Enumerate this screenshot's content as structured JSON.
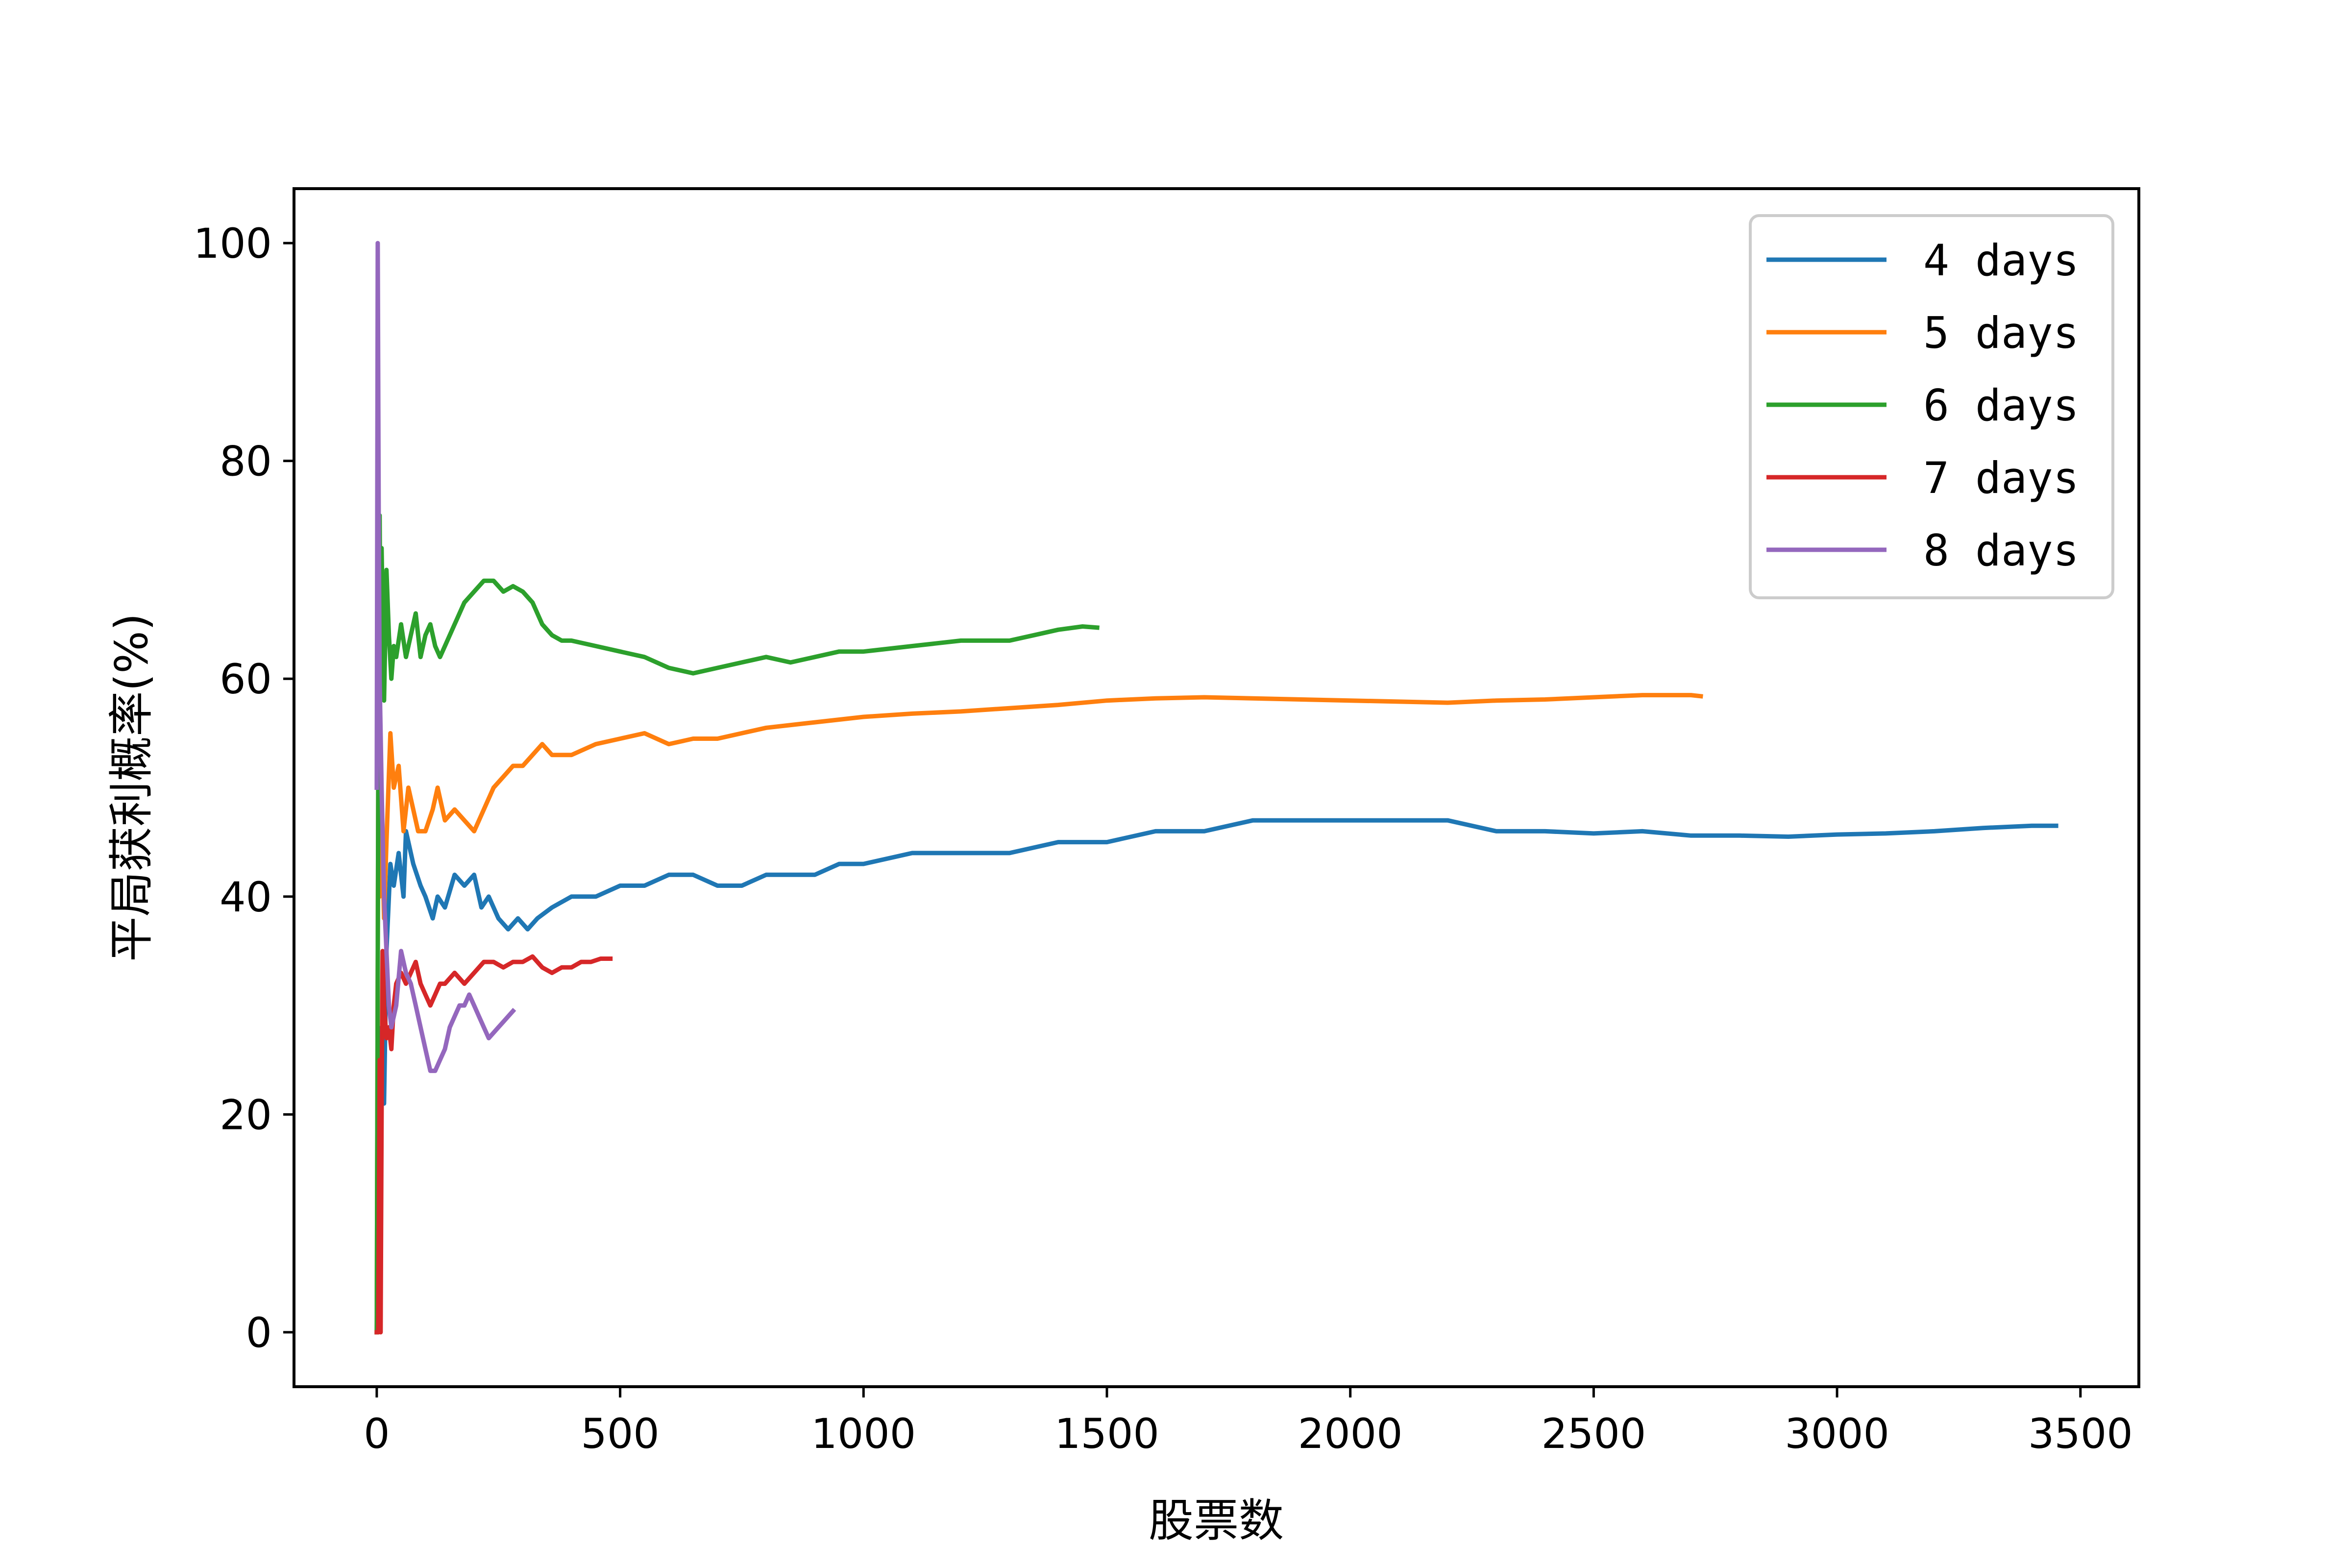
{
  "chart_data": {
    "type": "line",
    "title": "",
    "xlabel": "股票数",
    "ylabel": "平局获利概率(%)",
    "xlim": [
      -170,
      3620
    ],
    "ylim": [
      -5,
      105
    ],
    "xticks": [
      0,
      500,
      1000,
      1500,
      2000,
      2500,
      3000,
      3500
    ],
    "yticks": [
      0,
      20,
      40,
      60,
      80,
      100
    ],
    "xtick_labels": [
      "0",
      "500",
      "1000",
      "1500",
      "2000",
      "2500",
      "3000",
      "3500"
    ],
    "ytick_labels": [
      "0",
      "20",
      "40",
      "60",
      "80",
      "100"
    ],
    "grid": false,
    "legend_position": "top-right",
    "series": [
      {
        "name": "4 days",
        "color": "#1f77b4",
        "points": [
          [
            0,
            0
          ],
          [
            3,
            25
          ],
          [
            6,
            17
          ],
          [
            10,
            28
          ],
          [
            15,
            21
          ],
          [
            20,
            35
          ],
          [
            28,
            43
          ],
          [
            35,
            41
          ],
          [
            45,
            44
          ],
          [
            55,
            40
          ],
          [
            60,
            46
          ],
          [
            75,
            43
          ],
          [
            90,
            41
          ],
          [
            100,
            40
          ],
          [
            115,
            38
          ],
          [
            125,
            40
          ],
          [
            140,
            39
          ],
          [
            160,
            42
          ],
          [
            180,
            41
          ],
          [
            200,
            42
          ],
          [
            215,
            39
          ],
          [
            230,
            40
          ],
          [
            250,
            38
          ],
          [
            270,
            37
          ],
          [
            290,
            38
          ],
          [
            310,
            37
          ],
          [
            330,
            38
          ],
          [
            360,
            39
          ],
          [
            400,
            40
          ],
          [
            450,
            40
          ],
          [
            500,
            41
          ],
          [
            550,
            41
          ],
          [
            600,
            42
          ],
          [
            650,
            42
          ],
          [
            700,
            41
          ],
          [
            750,
            41
          ],
          [
            800,
            42
          ],
          [
            850,
            42
          ],
          [
            900,
            42
          ],
          [
            950,
            43
          ],
          [
            1000,
            43
          ],
          [
            1100,
            44
          ],
          [
            1200,
            44
          ],
          [
            1300,
            44
          ],
          [
            1400,
            45
          ],
          [
            1500,
            45
          ],
          [
            1600,
            46
          ],
          [
            1700,
            46
          ],
          [
            1800,
            47
          ],
          [
            1850,
            47
          ],
          [
            1900,
            47
          ],
          [
            2000,
            47
          ],
          [
            2100,
            47
          ],
          [
            2200,
            47
          ],
          [
            2300,
            46
          ],
          [
            2400,
            46
          ],
          [
            2500,
            45.8
          ],
          [
            2600,
            46
          ],
          [
            2700,
            45.6
          ],
          [
            2800,
            45.6
          ],
          [
            2900,
            45.5
          ],
          [
            3000,
            45.7
          ],
          [
            3100,
            45.8
          ],
          [
            3200,
            46
          ],
          [
            3300,
            46.3
          ],
          [
            3400,
            46.5
          ],
          [
            3450,
            46.5
          ]
        ]
      },
      {
        "name": "5 days",
        "color": "#ff7f0e",
        "points": [
          [
            0,
            0
          ],
          [
            3,
            50
          ],
          [
            6,
            40
          ],
          [
            10,
            47
          ],
          [
            15,
            38
          ],
          [
            20,
            45
          ],
          [
            28,
            55
          ],
          [
            35,
            50
          ],
          [
            45,
            52
          ],
          [
            55,
            46
          ],
          [
            65,
            50
          ],
          [
            75,
            48
          ],
          [
            85,
            46
          ],
          [
            100,
            46
          ],
          [
            115,
            48
          ],
          [
            125,
            50
          ],
          [
            140,
            47
          ],
          [
            160,
            48
          ],
          [
            180,
            47
          ],
          [
            200,
            46
          ],
          [
            220,
            48
          ],
          [
            240,
            50
          ],
          [
            260,
            51
          ],
          [
            280,
            52
          ],
          [
            300,
            52
          ],
          [
            320,
            53
          ],
          [
            340,
            54
          ],
          [
            360,
            53
          ],
          [
            380,
            53
          ],
          [
            400,
            53
          ],
          [
            450,
            54
          ],
          [
            500,
            54.5
          ],
          [
            550,
            55
          ],
          [
            600,
            54
          ],
          [
            650,
            54.5
          ],
          [
            700,
            54.5
          ],
          [
            750,
            55
          ],
          [
            800,
            55.5
          ],
          [
            900,
            56
          ],
          [
            1000,
            56.5
          ],
          [
            1100,
            56.8
          ],
          [
            1200,
            57
          ],
          [
            1300,
            57.3
          ],
          [
            1400,
            57.6
          ],
          [
            1500,
            58
          ],
          [
            1600,
            58.2
          ],
          [
            1700,
            58.3
          ],
          [
            1800,
            58.2
          ],
          [
            1900,
            58.1
          ],
          [
            2000,
            58
          ],
          [
            2100,
            57.9
          ],
          [
            2200,
            57.8
          ],
          [
            2300,
            58
          ],
          [
            2400,
            58.1
          ],
          [
            2500,
            58.3
          ],
          [
            2600,
            58.5
          ],
          [
            2700,
            58.5
          ],
          [
            2720,
            58.4
          ]
        ]
      },
      {
        "name": "6 days",
        "color": "#2ca02c",
        "points": [
          [
            0,
            0
          ],
          [
            3,
            50
          ],
          [
            6,
            75
          ],
          [
            8,
            60
          ],
          [
            10,
            72
          ],
          [
            15,
            58
          ],
          [
            20,
            70
          ],
          [
            25,
            64
          ],
          [
            30,
            60
          ],
          [
            35,
            63
          ],
          [
            40,
            62
          ],
          [
            50,
            65
          ],
          [
            60,
            62
          ],
          [
            70,
            64
          ],
          [
            80,
            66
          ],
          [
            90,
            62
          ],
          [
            100,
            64
          ],
          [
            110,
            65
          ],
          [
            120,
            63
          ],
          [
            130,
            62
          ],
          [
            140,
            63
          ],
          [
            160,
            65
          ],
          [
            180,
            67
          ],
          [
            200,
            68
          ],
          [
            220,
            69
          ],
          [
            240,
            69
          ],
          [
            260,
            68
          ],
          [
            280,
            68.5
          ],
          [
            300,
            68
          ],
          [
            320,
            67
          ],
          [
            340,
            65
          ],
          [
            360,
            64
          ],
          [
            380,
            63.5
          ],
          [
            400,
            63.5
          ],
          [
            450,
            63
          ],
          [
            500,
            62.5
          ],
          [
            550,
            62
          ],
          [
            600,
            61
          ],
          [
            650,
            60.5
          ],
          [
            700,
            61
          ],
          [
            750,
            61.5
          ],
          [
            800,
            62
          ],
          [
            850,
            61.5
          ],
          [
            900,
            62
          ],
          [
            950,
            62.5
          ],
          [
            1000,
            62.5
          ],
          [
            1100,
            63
          ],
          [
            1200,
            63.5
          ],
          [
            1300,
            63.5
          ],
          [
            1350,
            64
          ],
          [
            1400,
            64.5
          ],
          [
            1450,
            64.8
          ],
          [
            1480,
            64.7
          ]
        ]
      },
      {
        "name": "7 days",
        "color": "#d62728",
        "points": [
          [
            0,
            0
          ],
          [
            3,
            0
          ],
          [
            6,
            25
          ],
          [
            8,
            0
          ],
          [
            10,
            20
          ],
          [
            12,
            35
          ],
          [
            15,
            30
          ],
          [
            20,
            27
          ],
          [
            25,
            28
          ],
          [
            30,
            26
          ],
          [
            35,
            30
          ],
          [
            40,
            32
          ],
          [
            50,
            33
          ],
          [
            60,
            32
          ],
          [
            70,
            33
          ],
          [
            80,
            34
          ],
          [
            90,
            32
          ],
          [
            100,
            31
          ],
          [
            110,
            30
          ],
          [
            120,
            31
          ],
          [
            130,
            32
          ],
          [
            140,
            32
          ],
          [
            160,
            33
          ],
          [
            180,
            32
          ],
          [
            200,
            33
          ],
          [
            220,
            34
          ],
          [
            240,
            34
          ],
          [
            260,
            33.5
          ],
          [
            280,
            34
          ],
          [
            300,
            34
          ],
          [
            320,
            34.5
          ],
          [
            340,
            33.5
          ],
          [
            360,
            33
          ],
          [
            380,
            33.5
          ],
          [
            400,
            33.5
          ],
          [
            420,
            34
          ],
          [
            440,
            34
          ],
          [
            460,
            34.3
          ],
          [
            480,
            34.3
          ]
        ]
      },
      {
        "name": "8 days",
        "color": "#9467bd",
        "points": [
          [
            0,
            50
          ],
          [
            2,
            100
          ],
          [
            4,
            75
          ],
          [
            6,
            60
          ],
          [
            8,
            55
          ],
          [
            10,
            50
          ],
          [
            15,
            40
          ],
          [
            20,
            35
          ],
          [
            25,
            30
          ],
          [
            30,
            28
          ],
          [
            40,
            30
          ],
          [
            50,
            35
          ],
          [
            60,
            33
          ],
          [
            70,
            32
          ],
          [
            80,
            30
          ],
          [
            90,
            28
          ],
          [
            100,
            26
          ],
          [
            110,
            24
          ],
          [
            120,
            24
          ],
          [
            130,
            25
          ],
          [
            140,
            26
          ],
          [
            150,
            28
          ],
          [
            160,
            29
          ],
          [
            170,
            30
          ],
          [
            180,
            30
          ],
          [
            190,
            31
          ],
          [
            200,
            30
          ],
          [
            210,
            29
          ],
          [
            220,
            28
          ],
          [
            230,
            27
          ],
          [
            240,
            27.5
          ],
          [
            250,
            28
          ],
          [
            260,
            28.5
          ],
          [
            270,
            29
          ],
          [
            280,
            29.5
          ]
        ]
      }
    ]
  }
}
